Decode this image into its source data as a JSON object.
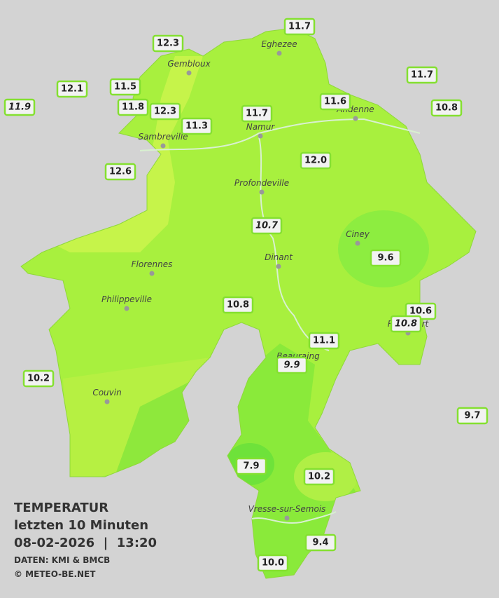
{
  "stations": [
    "11.7",
    "12.3",
    "12.1",
    "11.5",
    "11.7",
    "11.9",
    "11.8",
    "12.3",
    "11.6",
    "11.7",
    "10.8",
    "11.3",
    "12.0",
    "12.6",
    "10.7",
    "9.6",
    "10.8",
    "10.6",
    "10.8",
    "11.1",
    "9.9",
    "10.2",
    "9.7",
    "7.9",
    "10.2",
    "9.4",
    "10.0"
  ],
  "cities": [
    "Eghezee",
    "Gembloux",
    "Andenne",
    "Namur",
    "Sambreville",
    "Profondeville",
    "Ciney",
    "Dinant",
    "Florennes",
    "Philippeville",
    "Rochefort",
    "Beauraing",
    "Couvin",
    "Vresse-sur-Semois"
  ],
  "legend": {
    "title": "TEMPERATUR",
    "subtitle": "letzten 10 Minuten",
    "datetime": "08-02-2026  |  13:20",
    "source": "DATEN: KMI & BMCB",
    "copyright": "© METEO-BE.NET"
  }
}
